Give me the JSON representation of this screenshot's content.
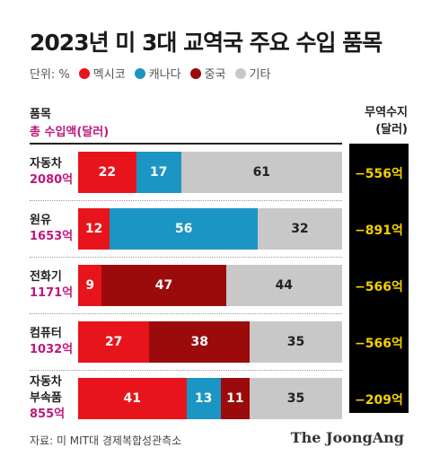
{
  "title": "2023년 미 3대 교역국 주요 수입 품목",
  "legend": {
    "unit": "단위: %",
    "items": [
      {
        "label": "멕시코",
        "color": "#e8141b"
      },
      {
        "label": "캐나다",
        "color": "#1b95c4"
      },
      {
        "label": "중국",
        "color": "#9c0b0b"
      },
      {
        "label": "기타",
        "color": "#c8c8c8"
      }
    ]
  },
  "header": {
    "item": "품목",
    "total": "총 수입액(달러)",
    "trade_line1": "무역수지",
    "trade_line2": "(달러)"
  },
  "chart_data": {
    "type": "bar",
    "stacked": true,
    "orientation": "horizontal",
    "title": "2023년 미 3대 교역국 주요 수입 품목",
    "unit": "%",
    "categories": [
      "자동차",
      "원유",
      "전화기",
      "컴퓨터",
      "자동차 부속품"
    ],
    "series": [
      {
        "name": "멕시코",
        "color": "#e8141b",
        "values": [
          22,
          12,
          9,
          27,
          41
        ]
      },
      {
        "name": "캐나다",
        "color": "#1b95c4",
        "values": [
          17,
          56,
          0,
          0,
          13
        ]
      },
      {
        "name": "중국",
        "color": "#9c0b0b",
        "values": [
          0,
          0,
          47,
          38,
          11
        ]
      },
      {
        "name": "기타",
        "color": "#c8c8c8",
        "values": [
          61,
          32,
          44,
          35,
          35
        ]
      }
    ],
    "rows": [
      {
        "label_lines": [
          "자동차"
        ],
        "total": "2080억",
        "trade_balance": "−556억"
      },
      {
        "label_lines": [
          "원유"
        ],
        "total": "1653억",
        "trade_balance": "−891억"
      },
      {
        "label_lines": [
          "전화기"
        ],
        "total": "1171억",
        "trade_balance": "−566억"
      },
      {
        "label_lines": [
          "컴퓨터"
        ],
        "total": "1032억",
        "trade_balance": "−566억"
      },
      {
        "label_lines": [
          "자동차",
          "부속품"
        ],
        "total": "855억",
        "trade_balance": "−209억"
      }
    ]
  },
  "source": "자료: 미 MIT대 경제복합성관측소",
  "brand": "The JoongAng"
}
